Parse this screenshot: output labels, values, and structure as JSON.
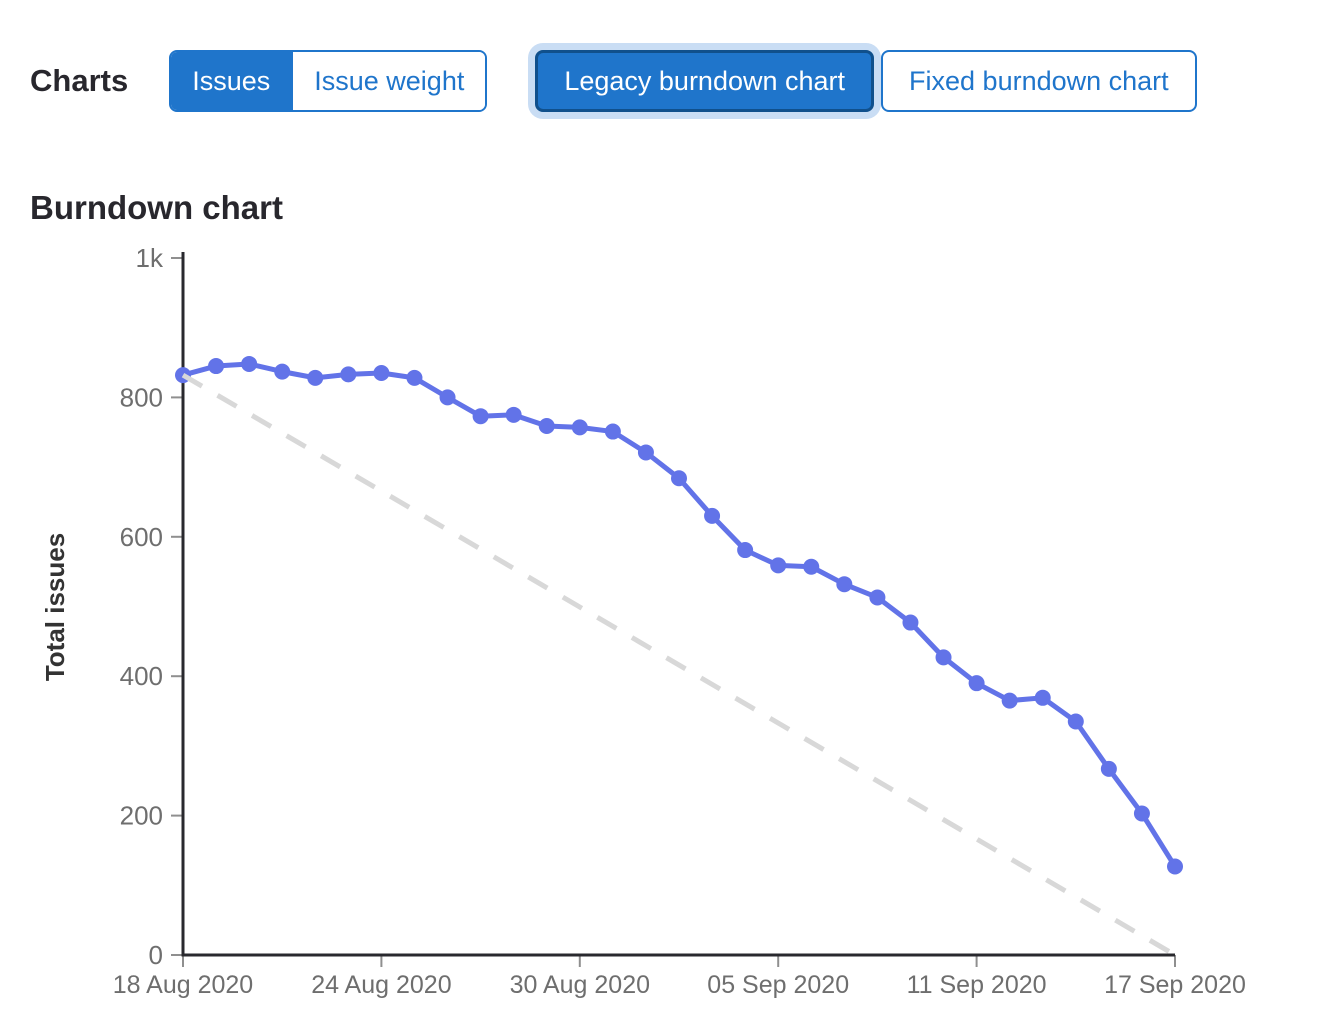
{
  "header": {
    "charts_label": "Charts",
    "metric_toggle": {
      "issues_label": "Issues",
      "issue_weight_label": "Issue weight",
      "selected": "Issues"
    },
    "chart_type_toggle": {
      "legacy_label": "Legacy burndown chart",
      "fixed_label": "Fixed burndown chart",
      "selected": "Legacy burndown chart"
    }
  },
  "section_title": "Burndown chart",
  "colors": {
    "accent_blue": "#1f75cb",
    "selected_border": "#10508c",
    "focus_ring": "#c9ddf4",
    "series_line": "#6273e8",
    "guideline_gray": "#d8d8d8",
    "axis_dark": "#29292e",
    "tick_gray": "#8f8f8f",
    "tick_label_gray": "#6e6e6e",
    "axis_title_dark": "#333333"
  },
  "chart_data": {
    "type": "line",
    "title": "Burndown chart",
    "xlabel": "",
    "ylabel": "Total issues",
    "ylim": [
      0,
      1000
    ],
    "x_range_days": 30,
    "grid": false,
    "legend": "none",
    "y_ticks": [
      {
        "label": "1k",
        "value": 1000
      },
      {
        "label": "800",
        "value": 800
      },
      {
        "label": "600",
        "value": 600
      },
      {
        "label": "400",
        "value": 400
      },
      {
        "label": "200",
        "value": 200
      },
      {
        "label": "0",
        "value": 0
      }
    ],
    "x_ticks": [
      {
        "label": "18 Aug 2020",
        "day": 0
      },
      {
        "label": "24 Aug 2020",
        "day": 6
      },
      {
        "label": "30 Aug 2020",
        "day": 12
      },
      {
        "label": "05 Sep 2020",
        "day": 18
      },
      {
        "label": "11 Sep 2020",
        "day": 24
      },
      {
        "label": "17 Sep 2020",
        "day": 30
      }
    ],
    "series": [
      {
        "name": "total-issues-remaining",
        "style": "solid",
        "color": "#6273e8",
        "x_days": [
          0,
          1,
          2,
          3,
          4,
          5,
          6,
          7,
          8,
          9,
          10,
          11,
          12,
          13,
          14,
          15,
          16,
          17,
          18,
          19,
          20,
          21,
          22,
          23,
          24,
          25,
          26,
          27,
          28,
          29,
          30
        ],
        "values": [
          832,
          845,
          848,
          837,
          828,
          833,
          835,
          828,
          800,
          773,
          775,
          759,
          757,
          751,
          721,
          684,
          630,
          581,
          559,
          557,
          532,
          513,
          477,
          427,
          390,
          365,
          369,
          335,
          267,
          203,
          127
        ]
      },
      {
        "name": "ideal-guideline",
        "style": "dashed",
        "color": "#d8d8d8",
        "x_days": [
          0,
          30
        ],
        "values": [
          832,
          0
        ]
      }
    ]
  }
}
